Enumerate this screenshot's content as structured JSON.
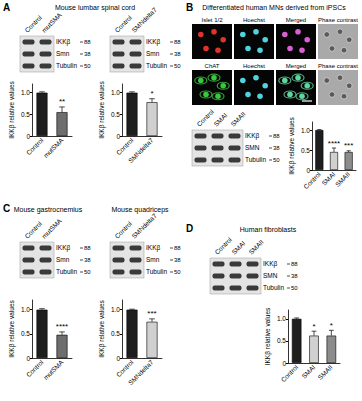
{
  "figure": {
    "panels": [
      {
        "letter": "A",
        "title": "Mouse lumbar spinal cord",
        "blots": [
          {
            "lanes": [
              "Control",
              "mutSMA"
            ],
            "rows": [
              {
                "protein": "IKKβ",
                "mw": "88"
              },
              {
                "protein": "Smn",
                "mw": "38"
              },
              {
                "protein": "Tubulin",
                "mw": "50"
              }
            ]
          },
          {
            "lanes": [
              "Control",
              "SMNdelta7"
            ],
            "rows": [
              {
                "protein": "IKKβ",
                "mw": "88"
              },
              {
                "protein": "Smn",
                "mw": "38"
              },
              {
                "protein": "Tubulin",
                "mw": "50"
              }
            ]
          }
        ]
      },
      {
        "letter": "B",
        "title": "Differentiated human MNs derived from iPSCs",
        "images": [
          {
            "labels": [
              "Islet 1/2",
              "Hoechst",
              "Merged",
              "Phase contrast"
            ]
          },
          {
            "labels": [
              "ChAT",
              "Hoechst",
              "Merged",
              "Phase contrast"
            ]
          }
        ],
        "blots": [
          {
            "lanes": [
              "Control",
              "SMAI",
              "SMAII"
            ],
            "rows": [
              {
                "protein": "IKKβ",
                "mw": "88"
              },
              {
                "protein": "SMN",
                "mw": "38"
              },
              {
                "protein": "Tubulin",
                "mw": "50"
              }
            ]
          }
        ]
      },
      {
        "letter": "C",
        "blots": [
          {
            "title": "Mouse gastrocnemius",
            "lanes": [
              "Control",
              "mutSMA"
            ],
            "rows": [
              {
                "protein": "IKKβ",
                "mw": "88"
              },
              {
                "protein": "Smn",
                "mw": "38"
              },
              {
                "protein": "Tubulin",
                "mw": "50"
              }
            ]
          },
          {
            "title": "Mouse quadriceps",
            "lanes": [
              "Control",
              "SMNdelta7"
            ],
            "rows": [
              {
                "protein": "IKKβ",
                "mw": "88"
              },
              {
                "protein": "Smn",
                "mw": "38"
              },
              {
                "protein": "Tubulin",
                "mw": "50"
              }
            ]
          }
        ]
      },
      {
        "letter": "D",
        "title": "Human fibroblasts",
        "blots": [
          {
            "lanes": [
              "Control",
              "SMAI",
              "SMAII"
            ],
            "rows": [
              {
                "protein": "IKKβ",
                "mw": "88"
              },
              {
                "protein": "SMN",
                "mw": "38"
              },
              {
                "protein": "Tubulin",
                "mw": "50"
              }
            ]
          }
        ]
      }
    ]
  },
  "chart_data": [
    {
      "type": "bar",
      "categories": [
        "Control",
        "mutSMA"
      ],
      "values": [
        1,
        0.55
      ],
      "errors": [
        0.02,
        0.12
      ],
      "annotations": [
        null,
        "**"
      ],
      "colors": [
        "#1e1e1e",
        "#6e6e6e"
      ],
      "ylabel": "IKKβ relative values",
      "ylim": [
        0,
        1.2
      ],
      "yticks": [
        0,
        0.5,
        {
          "value": 1,
          "label": "1.0"
        }
      ],
      "grid": false
    },
    {
      "type": "bar",
      "categories": [
        "Control",
        "SMNdelta7"
      ],
      "values": [
        1,
        0.78
      ],
      "errors": [
        0.02,
        0.08
      ],
      "annotations": [
        null,
        "*"
      ],
      "colors": [
        "#1e1e1e",
        "#d0d0d0"
      ],
      "ylabel": "IKKβ relative values",
      "ylim": [
        0,
        1.2
      ],
      "yticks": [
        0,
        0.5,
        {
          "value": 1,
          "label": "1.0"
        }
      ],
      "grid": false
    },
    {
      "type": "bar",
      "categories": [
        "Control",
        "SMAI",
        "SMAII"
      ],
      "values": [
        1,
        0.45,
        0.45
      ],
      "errors": [
        0.01,
        0.1,
        0.03
      ],
      "annotations": [
        null,
        "****",
        "***"
      ],
      "colors": [
        "#1e1e1e",
        "#d0d0d0",
        "#8c8c8c"
      ],
      "ylabel": "IKKβ relative values",
      "ylim": [
        0,
        1.2
      ],
      "yticks": [
        0,
        0.5,
        {
          "value": 1,
          "label": "1.0"
        }
      ],
      "grid": false
    },
    {
      "type": "bar",
      "categories": [
        "Control",
        "mutSMA"
      ],
      "values": [
        1,
        0.48
      ],
      "errors": [
        0.02,
        0.06
      ],
      "annotations": [
        null,
        "****"
      ],
      "colors": [
        "#1e1e1e",
        "#6e6e6e"
      ],
      "ylabel": "IKKβ relative values",
      "ylim": [
        0,
        1.2
      ],
      "yticks": [
        0,
        0.5,
        {
          "value": 1,
          "label": "1.0"
        }
      ],
      "grid": false
    },
    {
      "type": "bar",
      "categories": [
        "Control",
        "SMNdelta7"
      ],
      "values": [
        1,
        0.75
      ],
      "errors": [
        0.01,
        0.06
      ],
      "annotations": [
        null,
        "***"
      ],
      "colors": [
        "#1e1e1e",
        "#d0d0d0"
      ],
      "ylabel": "IKKβ relative values",
      "ylim": [
        0,
        1.2
      ],
      "yticks": [
        0,
        0.5,
        {
          "value": 1,
          "label": "1.0"
        }
      ],
      "grid": false
    },
    {
      "type": "bar",
      "categories": [
        "Control",
        "SMAI",
        "SMAII"
      ],
      "values": [
        1,
        0.62,
        0.62
      ],
      "errors": [
        0.02,
        0.1,
        0.12
      ],
      "annotations": [
        null,
        "*",
        "*"
      ],
      "colors": [
        "#1e1e1e",
        "#d0d0d0",
        "#8c8c8c"
      ],
      "ylabel": "IKKβ relative values",
      "ylim": [
        0,
        1.2
      ],
      "yticks": [
        0,
        0.5,
        {
          "value": 1,
          "label": "1.0"
        }
      ],
      "grid": false
    }
  ]
}
